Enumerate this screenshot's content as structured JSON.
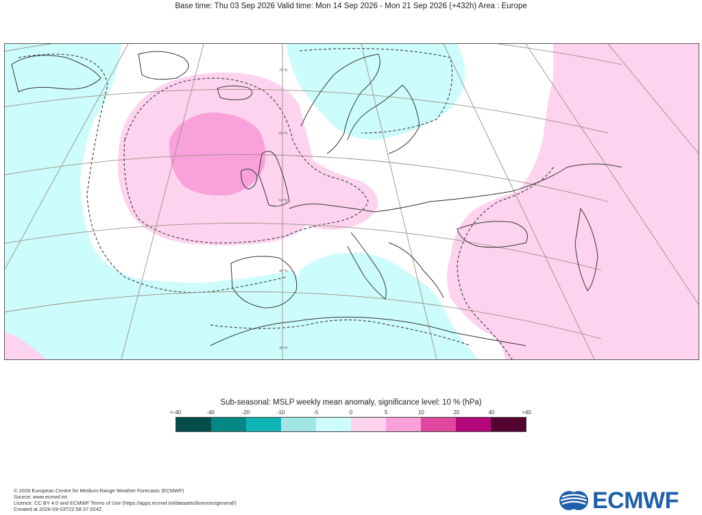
{
  "header": {
    "title": "Base time: Thu 03 Sep 2026 Valid time: Mon 14 Sep 2026 - Mon 21 Sep 2026 (+432h) Area : Europe"
  },
  "map": {
    "area": "Europe",
    "graticule_labels": [
      "70°N",
      "60°N",
      "50°N",
      "40°N",
      "30°N"
    ],
    "colors": {
      "ocean_background": "#ffffff",
      "neg_5_to_0": "#ccfcfb",
      "pos_0_to_5": "#fdd3ef",
      "pos_5_to_10": "#f9a1db",
      "coast": "#333333",
      "graticule": "#9b8f82",
      "significance_contour": "#444444"
    }
  },
  "legend": {
    "title": "Sub-seasonal: MSLP weekly mean anomaly, significance level: 10 % (hPa)",
    "ticks": [
      "<-40",
      "-40",
      "-20",
      "-10",
      "-5",
      "0",
      "5",
      "10",
      "20",
      "40",
      ">40"
    ],
    "colors": [
      "#034e4b",
      "#058785",
      "#11b4b4",
      "#9fe6e5",
      "#ccfcfb",
      "#fdd3ef",
      "#f9a1db",
      "#e2479f",
      "#b30779",
      "#520330"
    ]
  },
  "footer": {
    "line1": "© 2026 European Centre for Medium-Range Weather Forecasts (ECMWF)",
    "line2": "Source: www.ecmwf.int",
    "line3": "Licence: CC BY 4.0 and ECMWF Terms of Use (https://apps.ecmwf.int/datasets/licences/general/)",
    "line4": "Created at 2026-09-03T22:58:37.024Z"
  },
  "logo": {
    "text": "ECMWF",
    "color": "#1e5fa8"
  }
}
